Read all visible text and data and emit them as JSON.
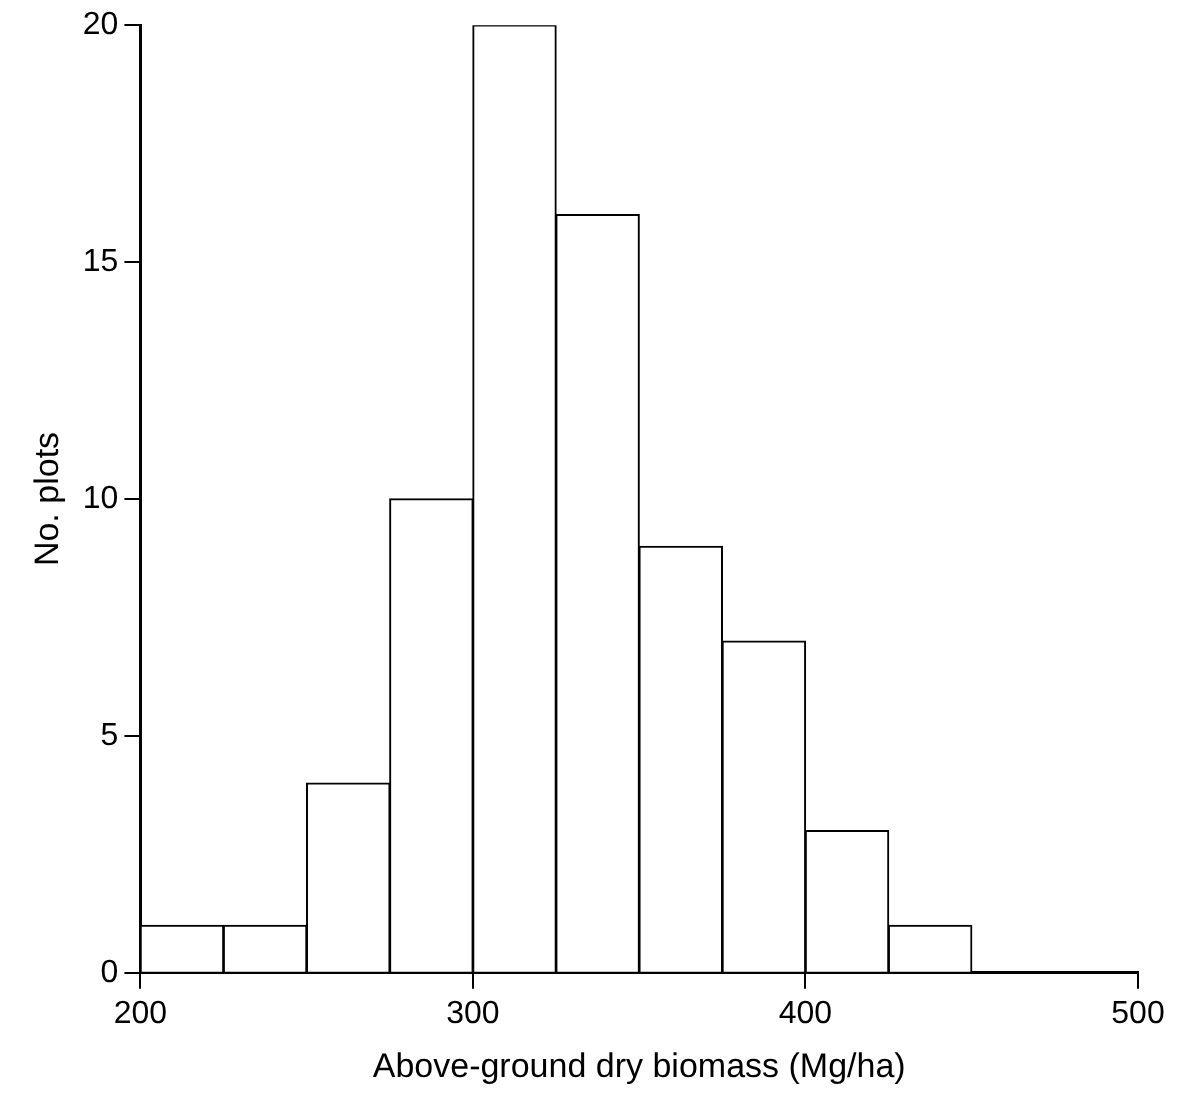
{
  "chart_data": {
    "type": "histogram",
    "xlabel": "Above-ground dry biomass (Mg/ha)",
    "ylabel": "No. plots",
    "bins": [
      200,
      225,
      250,
      275,
      300,
      325,
      350,
      375,
      400,
      425,
      450
    ],
    "values": [
      1,
      1,
      4,
      10,
      20,
      16,
      9,
      7,
      3,
      1
    ],
    "color": "#ffffff",
    "xlim": [
      200,
      500
    ],
    "xticks": [
      200,
      300,
      400,
      500
    ],
    "ylim": [
      0,
      20
    ],
    "yticks": [
      0,
      5,
      10,
      15,
      20
    ],
    "grid": false
  }
}
